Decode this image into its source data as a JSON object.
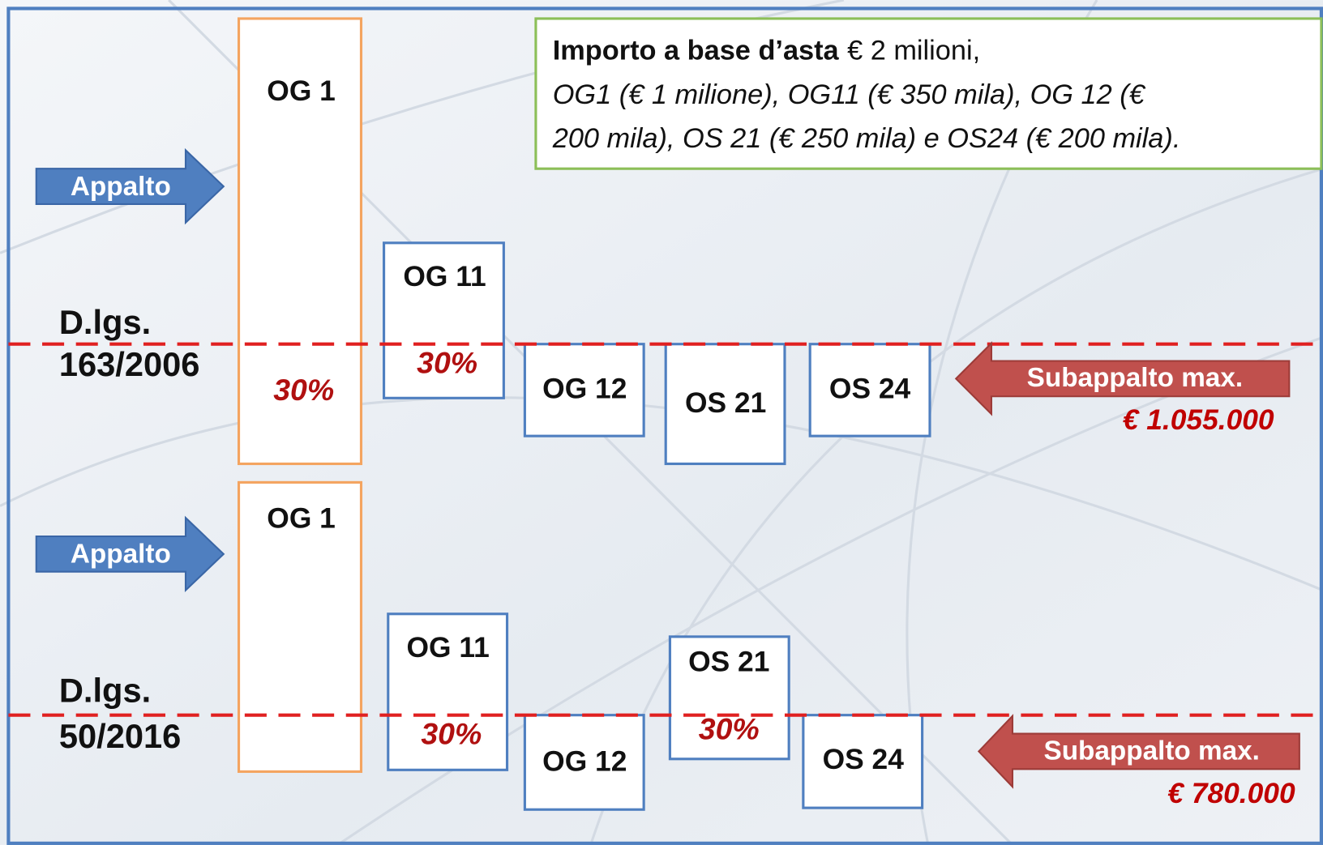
{
  "note_box": {
    "title": "Importo a base d’asta",
    "amount": "€ 2 milioni,",
    "lines": [
      "OG1 (€ 1 milione), OG11 (€ 350 mila), OG 12 (€",
      "200 mila), OS 21 (€ 250 mila) e OS24 (€ 200 mila)."
    ]
  },
  "sections": [
    {
      "law": [
        "D.lgs.",
        "163/2006"
      ],
      "arrow": "Appalto",
      "boxes": [
        "OG 1",
        "OG 11",
        "OG 12",
        "OS 21",
        "OS 24"
      ],
      "percents": [
        "30%",
        "30%"
      ],
      "subappalto": "Subappalto max.",
      "amount": "€ 1.055.000"
    },
    {
      "law": [
        "D.lgs.",
        "50/2016"
      ],
      "arrow": "Appalto",
      "boxes": [
        "OG 1",
        "OG 11",
        "OG 12",
        "OS 21",
        "OS 24"
      ],
      "percents": [
        "30%",
        "30%"
      ],
      "subappalto": "Subappalto max.",
      "amount": "€ 780.000"
    }
  ]
}
